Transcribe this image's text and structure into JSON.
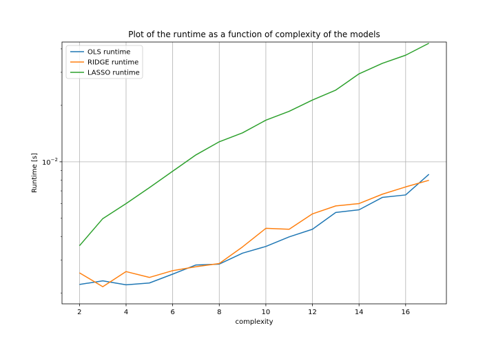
{
  "chart_data": {
    "type": "line",
    "title": "Plot of the runtime as a function of complexity of the models",
    "xlabel": "complexity",
    "ylabel": "Runtime [s]",
    "x_ticks": [
      2,
      4,
      6,
      8,
      10,
      12,
      14,
      16
    ],
    "y_scale": "log",
    "y_major_tick": {
      "value": 0.01,
      "mantissa": "10",
      "exponent": "−2"
    },
    "xlim": [
      1.25,
      17.75
    ],
    "ylim": [
      0.00175,
      0.0435
    ],
    "grid": "vertical at x ticks, horizontal at y major tick",
    "legend_position": "top-left",
    "x": [
      2,
      3,
      4,
      5,
      6,
      7,
      8,
      9,
      10,
      11,
      12,
      13,
      14,
      15,
      16,
      17
    ],
    "series": [
      {
        "name": "OLS runtime",
        "color": "#1f77b4",
        "values": [
          0.00222,
          0.00232,
          0.00221,
          0.00226,
          0.00252,
          0.00282,
          0.00285,
          0.00326,
          0.00354,
          0.00398,
          0.00437,
          0.00537,
          0.00555,
          0.00646,
          0.00666,
          0.00858
        ]
      },
      {
        "name": "RIDGE runtime",
        "color": "#ff7f0e",
        "values": [
          0.00256,
          0.00216,
          0.0026,
          0.00242,
          0.00263,
          0.00276,
          0.00287,
          0.00352,
          0.00442,
          0.00437,
          0.00528,
          0.00582,
          0.00599,
          0.00672,
          0.00735,
          0.00797
        ]
      },
      {
        "name": "LASSO runtime",
        "color": "#2ca02c",
        "values": [
          0.00357,
          0.00498,
          0.00599,
          0.00728,
          0.00891,
          0.01089,
          0.01279,
          0.01427,
          0.01667,
          0.01858,
          0.02135,
          0.02411,
          0.02945,
          0.03348,
          0.037,
          0.04287
        ]
      }
    ]
  }
}
